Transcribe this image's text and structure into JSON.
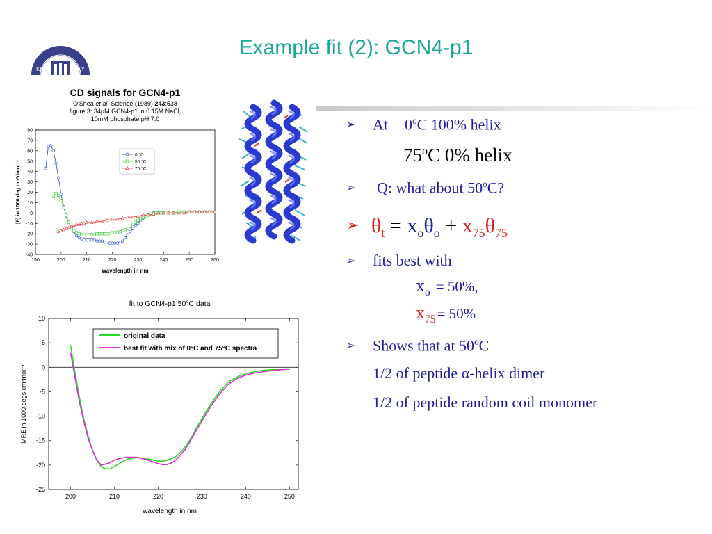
{
  "slide": {
    "title": "Example fit (2): GCN4-p1",
    "logo_text": "KING UNIVERSITY"
  },
  "chart_data": [
    {
      "type": "scatter",
      "title": "CD signals for GCN4-p1",
      "subtitle_lines": [
        "O'Shea et al. Science (1989) 243:538",
        "figure 3: 34μM GCN4-p1 in 0.15M NaCl,",
        "10mM phosphate pH 7.0"
      ],
      "subtitle_parts": {
        "author": "O'Shea ",
        "etal": "et al.",
        "journal": " Science (1989) ",
        "volume": "243",
        "pages": ":538"
      },
      "xlabel": "wavelength in nm",
      "ylabel": "[θ] in 1000 deg cm²dmol⁻¹",
      "xlim": [
        190,
        260
      ],
      "ylim": [
        -40,
        80
      ],
      "xticks": [
        190,
        200,
        210,
        220,
        230,
        240,
        250,
        260
      ],
      "yticks": [
        -40,
        -30,
        -20,
        -10,
        0,
        10,
        20,
        30,
        40,
        50,
        60,
        70,
        80
      ],
      "legend_position": "top-right",
      "legend_labels": [
        "0 °C",
        "50 °C",
        "75 °C"
      ],
      "series": [
        {
          "name": "0 °C",
          "marker": "circle",
          "color": "#1f3fd1",
          "x": [
            194,
            195,
            196,
            197,
            198,
            199,
            200,
            201,
            202,
            203,
            204,
            205,
            206,
            207,
            208,
            209,
            210,
            211,
            212,
            213,
            214,
            215,
            216,
            217,
            218,
            219,
            220,
            221,
            222,
            223,
            224,
            225,
            226,
            227,
            228,
            229,
            230,
            231,
            232,
            233,
            234,
            235,
            236,
            237,
            238,
            239,
            240
          ],
          "y": [
            43,
            64,
            65,
            60,
            48,
            34,
            18,
            6,
            -3,
            -9,
            -14,
            -18,
            -22,
            -24,
            -25,
            -26,
            -26,
            -26,
            -26,
            -26,
            -27,
            -27,
            -27,
            -28,
            -28,
            -29,
            -29,
            -29,
            -29,
            -28,
            -27,
            -24,
            -21,
            -18,
            -15,
            -12,
            -10,
            -7,
            -5,
            -3,
            -2,
            -1,
            0,
            0,
            0,
            0,
            0
          ]
        },
        {
          "name": "50 °C",
          "marker": "square",
          "color": "#22cc22",
          "x": [
            197,
            198,
            199,
            200,
            201,
            202,
            203,
            204,
            205,
            206,
            207,
            208,
            209,
            210,
            211,
            212,
            213,
            214,
            215,
            216,
            217,
            218,
            219,
            220,
            221,
            222,
            223,
            224,
            225,
            226,
            227,
            228,
            229,
            230,
            231,
            232,
            233,
            234,
            235,
            236,
            237,
            238,
            239,
            240,
            242,
            244,
            246,
            248,
            250,
            252,
            254,
            256,
            258,
            260
          ],
          "y": [
            16,
            19,
            17,
            12,
            5,
            -2,
            -9,
            -14,
            -17,
            -19,
            -20,
            -21,
            -21,
            -21,
            -21,
            -21,
            -21,
            -20,
            -20,
            -20,
            -20,
            -20,
            -20,
            -19,
            -19,
            -19,
            -18,
            -17,
            -16,
            -15,
            -13,
            -11,
            -9,
            -7,
            -5,
            -4,
            -3,
            -2,
            -1,
            -1,
            0,
            0,
            0,
            0,
            0,
            0,
            1,
            1,
            1,
            1,
            1,
            1,
            1,
            1
          ]
        },
        {
          "name": "75 °C",
          "marker": "triangle",
          "color": "#e23a3a",
          "x": [
            199,
            200,
            201,
            202,
            203,
            204,
            205,
            206,
            207,
            208,
            209,
            210,
            212,
            214,
            216,
            218,
            220,
            222,
            224,
            226,
            228,
            230,
            232,
            234,
            236,
            238,
            240,
            242,
            244,
            246,
            248,
            250,
            252,
            254,
            256,
            258,
            260
          ],
          "y": [
            -18,
            -17,
            -16,
            -15,
            -14,
            -13,
            -12,
            -11,
            -11,
            -10,
            -10,
            -9,
            -9,
            -8,
            -8,
            -7,
            -6,
            -6,
            -5,
            -4,
            -4,
            -3,
            -2,
            -2,
            -1,
            0,
            0,
            0,
            0,
            0,
            0,
            1,
            1,
            1,
            1,
            1,
            1
          ]
        }
      ]
    },
    {
      "type": "line",
      "title": "fit to GCN4-p1 50°C data",
      "xlabel": "wavelength in nm",
      "ylabel": "MRE in 1000 degs cm²mol⁻¹",
      "xlim": [
        195,
        252
      ],
      "ylim": [
        -25,
        10
      ],
      "xticks": [
        200,
        210,
        220,
        230,
        240,
        250
      ],
      "yticks": [
        -25,
        -20,
        -15,
        -10,
        -5,
        0,
        5,
        10
      ],
      "zero_line": true,
      "legend_position": "top-right",
      "legend_labels": [
        "original data",
        "best fit with mix of 0°C and 75°C spectra"
      ],
      "series": [
        {
          "name": "original data",
          "color": "#22dd22",
          "x": [
            200,
            201,
            202,
            203,
            204,
            205,
            206,
            207,
            208,
            209,
            210,
            211,
            212,
            213,
            214,
            215,
            216,
            217,
            218,
            219,
            220,
            221,
            222,
            223,
            224,
            225,
            226,
            227,
            228,
            229,
            230,
            232,
            234,
            236,
            238,
            240,
            242,
            244,
            246,
            248,
            250
          ],
          "y": [
            4.5,
            -1,
            -6,
            -10.5,
            -14,
            -17,
            -19,
            -20.3,
            -20.8,
            -20.8,
            -20.3,
            -19.8,
            -19.2,
            -18.8,
            -18.6,
            -18.5,
            -18.5,
            -18.7,
            -18.8,
            -19,
            -19.2,
            -19.2,
            -19,
            -18.7,
            -18.3,
            -17.5,
            -16.5,
            -15.2,
            -13.7,
            -12,
            -10.5,
            -7.5,
            -5,
            -3,
            -2,
            -1.3,
            -0.9,
            -0.6,
            -0.5,
            -0.4,
            -0.3
          ]
        },
        {
          "name": "best fit with mix of 0°C and 75°C spectra",
          "color": "#d430d4",
          "x": [
            200,
            201,
            202,
            203,
            204,
            205,
            206,
            207,
            208,
            209,
            210,
            211,
            212,
            213,
            214,
            215,
            216,
            217,
            218,
            219,
            220,
            221,
            222,
            223,
            224,
            225,
            226,
            227,
            228,
            229,
            230,
            232,
            234,
            236,
            238,
            240,
            242,
            244,
            246,
            248,
            250
          ],
          "y": [
            3,
            -2,
            -7,
            -11,
            -14.5,
            -17,
            -19,
            -20,
            -19.8,
            -19.5,
            -19,
            -18.7,
            -18.5,
            -18.4,
            -18.4,
            -18.4,
            -18.6,
            -18.8,
            -19.1,
            -19.4,
            -19.7,
            -19.9,
            -19.9,
            -19.6,
            -19,
            -18,
            -17,
            -15.6,
            -14,
            -12.5,
            -11,
            -8,
            -5.5,
            -3.5,
            -2.3,
            -1.6,
            -1.2,
            -0.9,
            -0.7,
            -0.5,
            -0.4
          ]
        }
      ]
    }
  ],
  "bullets": {
    "b1": {
      "a": "At",
      "b": "0",
      "c": "o",
      "d": "C 100% helix"
    },
    "b1b": {
      "a": "75",
      "b": "o",
      "c": "C  0% helix"
    },
    "b2": {
      "a": "Q: what about 50",
      "b": "o",
      "c": "C?"
    },
    "eq": {
      "theta": "θ",
      "t": "t",
      "eqs": "=",
      "x": "x",
      "o1": "o",
      "theta2": "θ",
      "o2": "o",
      "plus": "+",
      "x75": "x",
      "s75": "75",
      "theta3": "θ",
      "s75b": "75"
    },
    "b4": "fits best with",
    "xo": {
      "x": "x",
      "sub": "o",
      "val": "= 50%,"
    },
    "x75": {
      "x": "x",
      "sub": "75",
      "val": "=  50%"
    },
    "b5": {
      "a": "Shows that at 50",
      "b": "o",
      "c": "C"
    },
    "line1": {
      "a": "1/2 of peptide ",
      "alpha": "α",
      "b": "-helix dimer"
    },
    "line2": "1/2 of peptide random coil monomer"
  }
}
